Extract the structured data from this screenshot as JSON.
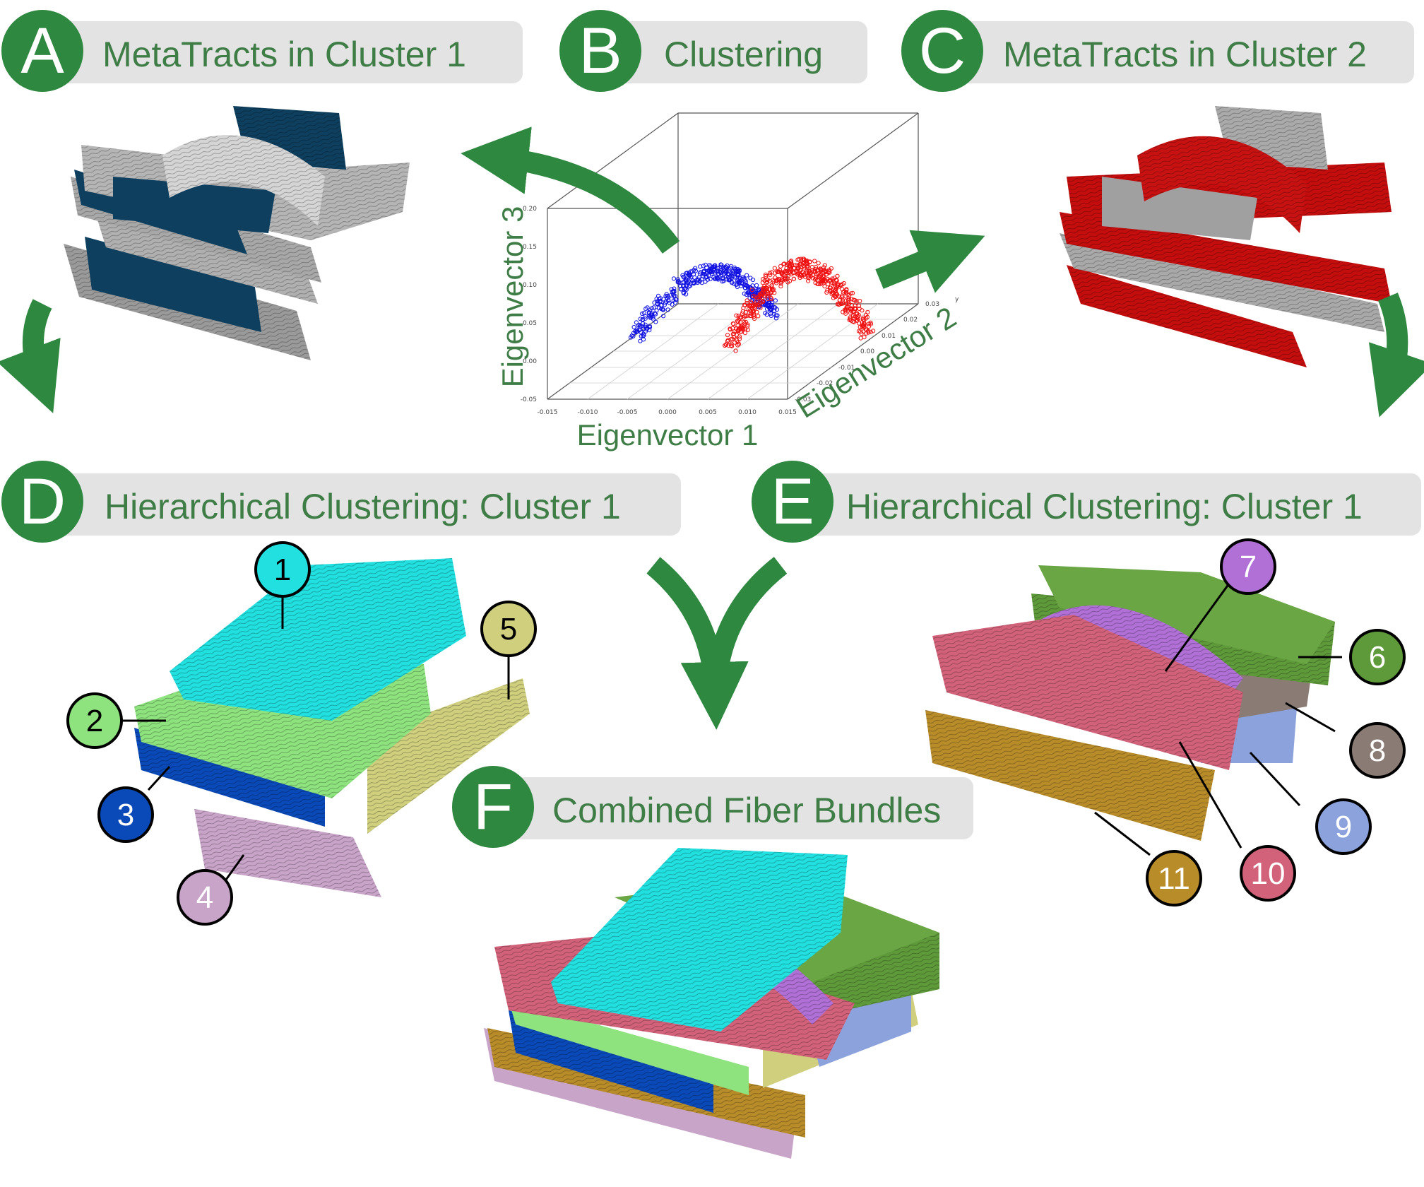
{
  "panels": [
    {
      "letter": "A",
      "title": "MetaTracts in Cluster 1"
    },
    {
      "letter": "B",
      "title": "Clustering"
    },
    {
      "letter": "C",
      "title": "MetaTracts in Cluster 2"
    },
    {
      "letter": "D",
      "title": "Hierarchical Clustering: Cluster 1"
    },
    {
      "letter": "E",
      "title": "Hierarchical Clustering: Cluster 1"
    },
    {
      "letter": "F",
      "title": "Combined Fiber Bundles"
    }
  ],
  "scatter": {
    "xlabel": "Eigenvector 1",
    "ylabel": "Eigenvector 2",
    "zlabel": "Eigenvector 3",
    "x_ticks": [
      "-0.015",
      "-0.010",
      "-0.005",
      "0.000",
      "0.005",
      "0.010",
      "0.015"
    ],
    "y_ticks": [
      "-0.03",
      "-0.02",
      "-0.01",
      "0.00",
      "0.01",
      "0.02",
      "0.03"
    ],
    "z_ticks": [
      "-0.05",
      "0.00",
      "0.05",
      "0.10",
      "0.15",
      "0.20"
    ],
    "y_axis_letter": "y",
    "cluster_colors": [
      "#1010e0",
      "#ee1010"
    ]
  },
  "bundles": [
    {
      "id": "1",
      "color": "#22e0e0"
    },
    {
      "id": "2",
      "color": "#8ee37e"
    },
    {
      "id": "3",
      "color": "#0a49b8"
    },
    {
      "id": "4",
      "color": "#c9a4c9"
    },
    {
      "id": "5",
      "color": "#cfcf7e"
    },
    {
      "id": "6",
      "color": "#5f9a3a"
    },
    {
      "id": "7",
      "color": "#b070d6"
    },
    {
      "id": "8",
      "color": "#8a7b75"
    },
    {
      "id": "9",
      "color": "#8ca2dc"
    },
    {
      "id": "10",
      "color": "#d2627a"
    },
    {
      "id": "11",
      "color": "#b98c2a"
    }
  ],
  "colors": {
    "accent_green": "#2e8840",
    "label_green": "#3f7d46",
    "banner_gray": "#e3e3e3",
    "cluster1_blue": "#0e3f5f",
    "cluster2_red": "#c40d0d"
  }
}
